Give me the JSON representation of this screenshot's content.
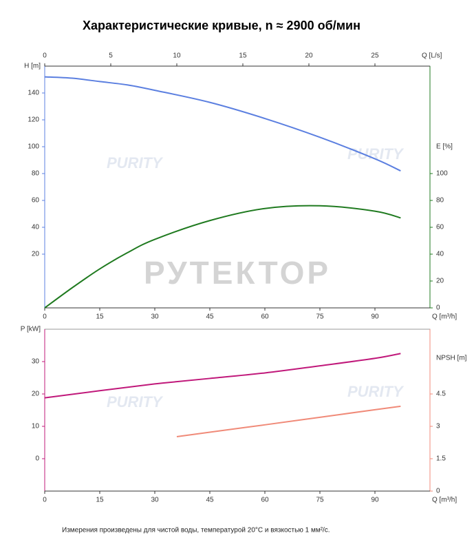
{
  "title": "Характеристические кривые, n ≈ 2900 об/мин",
  "footnote": "Измерения произведены для чистой воды, температурой 20°C и вязкостью 1 мм²/с.",
  "watermark": "РУТЕКТОР",
  "watermark_logo": "PURITY",
  "chart_data": [
    {
      "type": "line",
      "xlabel": "Q [m³/h]",
      "x2label": "Q [L/s]",
      "ylabel": "H [m]",
      "y2label": "E [%]",
      "x": [
        0,
        7.5,
        15,
        22.5,
        30,
        45,
        60,
        75,
        90,
        97
      ],
      "xlim": [
        0,
        105
      ],
      "xticks": [
        0,
        15,
        30,
        45,
        60,
        75,
        90
      ],
      "x2lim": [
        0,
        29.1667
      ],
      "x2ticks": [
        0,
        5,
        10,
        15,
        20,
        25
      ],
      "ylim": [
        -20,
        160
      ],
      "yticks": [
        20,
        40,
        60,
        80,
        100,
        120,
        140
      ],
      "y2lim": [
        0,
        180
      ],
      "y2ticks": [
        0,
        20,
        40,
        60,
        80,
        100
      ],
      "grid": false,
      "series": [
        {
          "name": "H [m]",
          "color": "#5b7fe0",
          "values": [
            152,
            151,
            148.5,
            146,
            142,
            133,
            121,
            107,
            91,
            82
          ]
        },
        {
          "name": "E [%]",
          "color": "#1f7a1f",
          "axis": "y2",
          "values": [
            0,
            15,
            29,
            41,
            51,
            65,
            74,
            76,
            72,
            67
          ]
        }
      ]
    },
    {
      "type": "line",
      "xlabel": "Q [m³/h]",
      "ylabel": "P [kW]",
      "y2label": "NPSH [m]",
      "x": [
        0,
        15,
        30,
        36,
        45,
        60,
        75,
        90,
        97
      ],
      "xlim": [
        0,
        105
      ],
      "xticks": [
        0,
        15,
        30,
        45,
        60,
        75,
        90
      ],
      "ylim": [
        -10,
        40
      ],
      "yticks": [
        0,
        10,
        20,
        30
      ],
      "y2lim": [
        0,
        7.5
      ],
      "y2ticks": [
        0,
        1.5,
        3,
        4.5
      ],
      "grid": false,
      "series": [
        {
          "name": "P [kW]",
          "color": "#c0187a",
          "values": [
            18.8,
            21,
            23.1,
            23.8,
            24.8,
            26.5,
            28.7,
            31,
            32.5
          ]
        },
        {
          "name": "NPSH [m]",
          "color": "#f08a78",
          "axis": "y2",
          "values": [
            null,
            null,
            null,
            2.52,
            2.73,
            3.07,
            3.42,
            3.77,
            3.93
          ]
        }
      ]
    }
  ]
}
